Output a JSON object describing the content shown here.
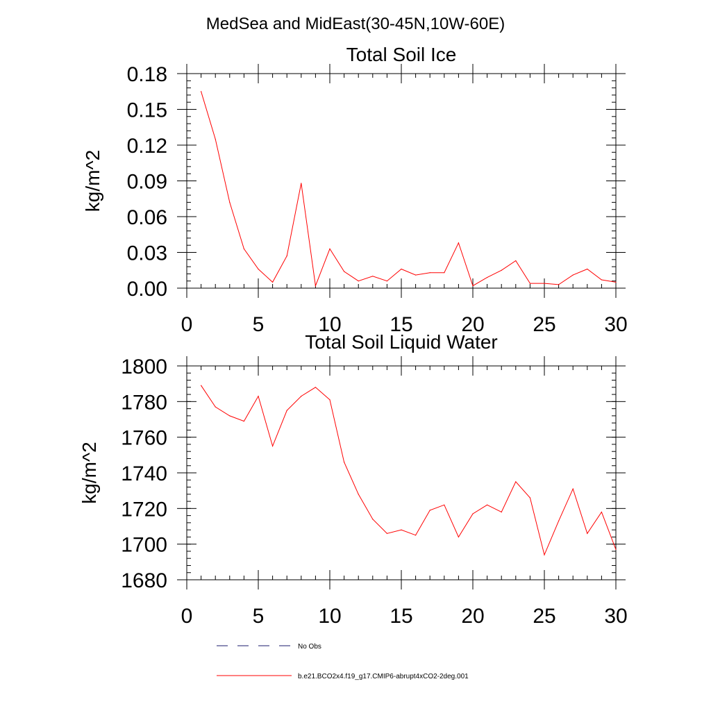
{
  "figure_title": "MedSea and MidEast(30-45N,10W-60E)",
  "colors": {
    "model": "#ff0000",
    "obs": "#1a1a6e",
    "axis": "#000000"
  },
  "legend": [
    {
      "label": "No Obs",
      "style": "dashed",
      "color": "#1a1a6e"
    },
    {
      "label": "b.e21.BCO2x4.f19_g17.CMIP6-abrupt4xCO2-2deg.001",
      "style": "solid",
      "color": "#ff0000"
    }
  ],
  "chart_data": [
    {
      "type": "line",
      "title": "Total Soil Ice",
      "xlabel": "",
      "ylabel": "kg/m^2",
      "xlim": [
        0,
        30
      ],
      "ylim": [
        0,
        0.18
      ],
      "xticks": [
        0,
        5,
        10,
        15,
        20,
        25,
        30
      ],
      "yticks": [
        0,
        0.03,
        0.06,
        0.09,
        0.12,
        0.15,
        0.18
      ],
      "xtick_labels": [
        "0",
        "5",
        "10",
        "15",
        "20",
        "25",
        "30"
      ],
      "ytick_labels": [
        "0.00",
        "0.03",
        "0.06",
        "0.09",
        "0.12",
        "0.15",
        "0.18"
      ],
      "grid": false,
      "series": [
        {
          "name": "b.e21.BCO2x4.f19_g17.CMIP6-abrupt4xCO2-2deg.001",
          "x": [
            1,
            2,
            3,
            4,
            5,
            6,
            7,
            8,
            9,
            10,
            11,
            12,
            13,
            14,
            15,
            16,
            17,
            18,
            19,
            20,
            21,
            22,
            23,
            24,
            25,
            26,
            27,
            28,
            29,
            30
          ],
          "values": [
            0.165,
            0.125,
            0.072,
            0.033,
            0.016,
            0.005,
            0.027,
            0.088,
            0.002,
            0.033,
            0.014,
            0.006,
            0.01,
            0.006,
            0.016,
            0.011,
            0.013,
            0.013,
            0.038,
            0.002,
            0.009,
            0.015,
            0.023,
            0.004,
            0.004,
            0.003,
            0.011,
            0.016,
            0.007,
            0.005
          ]
        }
      ]
    },
    {
      "type": "line",
      "title": "Total Soil Liquid Water",
      "xlabel": "",
      "ylabel": "kg/m^2",
      "xlim": [
        0,
        30
      ],
      "ylim": [
        1680,
        1800
      ],
      "xticks": [
        0,
        5,
        10,
        15,
        20,
        25,
        30
      ],
      "yticks": [
        1680,
        1700,
        1720,
        1740,
        1760,
        1780,
        1800
      ],
      "xtick_labels": [
        "0",
        "5",
        "10",
        "15",
        "20",
        "25",
        "30"
      ],
      "ytick_labels": [
        "1680",
        "1700",
        "1720",
        "1740",
        "1760",
        "1780",
        "1800"
      ],
      "grid": false,
      "series": [
        {
          "name": "b.e21.BCO2x4.f19_g17.CMIP6-abrupt4xCO2-2deg.001",
          "x": [
            1,
            2,
            3,
            4,
            5,
            6,
            7,
            8,
            9,
            10,
            11,
            12,
            13,
            14,
            15,
            16,
            17,
            18,
            19,
            20,
            21,
            22,
            23,
            24,
            25,
            26,
            27,
            28,
            29,
            30
          ],
          "values": [
            1789,
            1777,
            1772,
            1769,
            1783,
            1755,
            1775,
            1783,
            1788,
            1781,
            1746,
            1728,
            1714,
            1706,
            1708,
            1705,
            1719,
            1722,
            1704,
            1717,
            1722,
            1718,
            1735,
            1726,
            1694,
            1713,
            1731,
            1706,
            1718,
            1697
          ]
        }
      ]
    }
  ]
}
